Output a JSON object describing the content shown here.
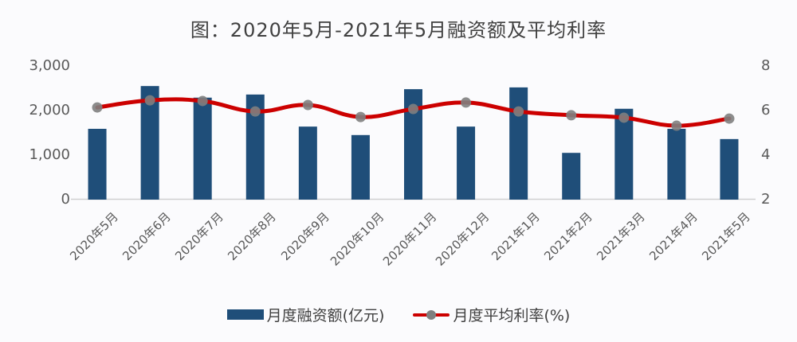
{
  "chart_data": {
    "type": "bar",
    "title": "图：2020年5月-2021年5月融资额及平均利率",
    "categories": [
      "2020年5月",
      "2020年6月",
      "2020年7月",
      "2020年8月",
      "2020年9月",
      "2020年10月",
      "2020年11月",
      "2020年12月",
      "2021年1月",
      "2021年2月",
      "2021年3月",
      "2021年4月",
      "2021年5月"
    ],
    "series": [
      {
        "name": "月度融资额(亿元)",
        "type": "bar",
        "axis": "left",
        "color": "#1f4e79",
        "values": [
          1590,
          2550,
          2290,
          2360,
          1640,
          1450,
          2480,
          1640,
          2520,
          1050,
          2040,
          1590,
          1360
        ]
      },
      {
        "name": "月度平均利率(%)",
        "type": "line",
        "axis": "right",
        "color": "#cc0000",
        "marker_color": "#7f7f7f",
        "values": [
          6.14,
          6.46,
          6.43,
          5.96,
          6.25,
          5.71,
          6.07,
          6.36,
          5.96,
          5.79,
          5.68,
          5.32,
          5.64
        ]
      }
    ],
    "y_left": {
      "ticks": [
        "3,000",
        "2,000",
        "1,000",
        "0"
      ],
      "ylim": [
        0,
        3000
      ]
    },
    "y_right": {
      "ticks": [
        "8",
        "6",
        "4",
        "2"
      ],
      "ylim": [
        2,
        8
      ]
    },
    "xlabel": "",
    "ylabel": "",
    "grid": false,
    "legend_position": "bottom"
  },
  "legend": {
    "bar_label": "月度融资额(亿元)",
    "line_label": "月度平均利率(%)"
  }
}
